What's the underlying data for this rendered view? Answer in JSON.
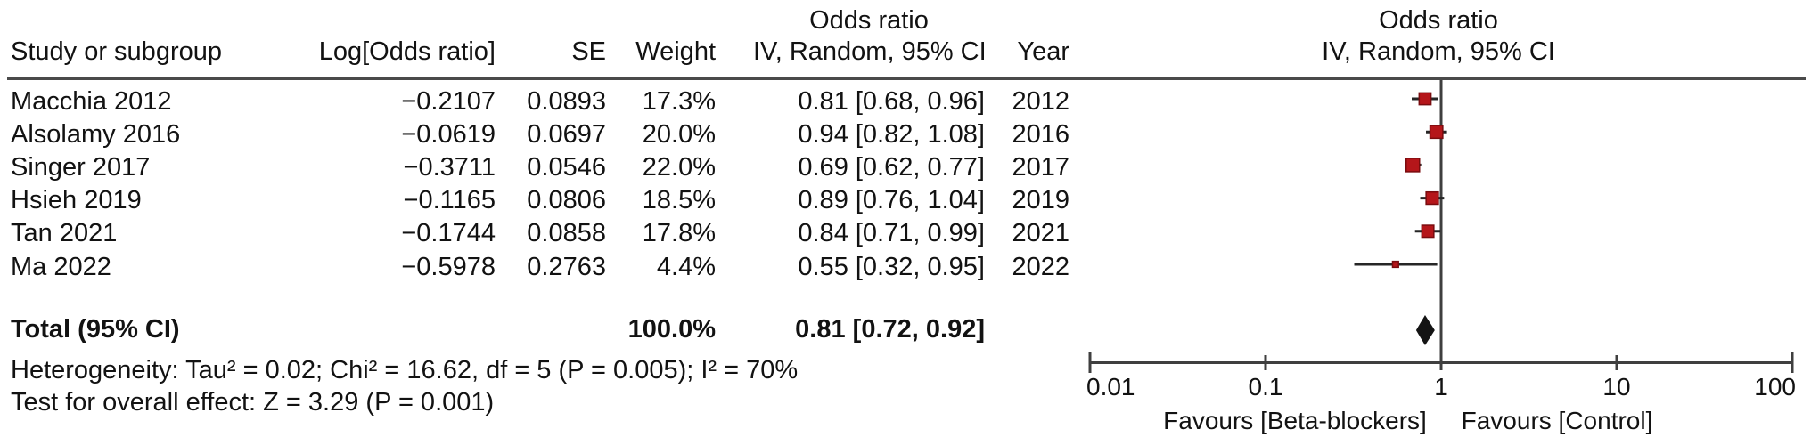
{
  "table": {
    "headers": {
      "study": "Study or subgroup",
      "log_or": "Log[Odds ratio]",
      "se": "SE",
      "weight": "Weight",
      "effect_line1": "Odds ratio",
      "effect_line2": "IV, Random, 95% CI",
      "year": "Year",
      "plot_line1": "Odds ratio",
      "plot_line2": "IV, Random, 95% CI"
    }
  },
  "chart_data": {
    "type": "forest",
    "effect_measure": "Odds ratio",
    "model": "IV, Random, 95% CI",
    "x_scale": "log",
    "x_range": [
      0.01,
      100
    ],
    "x_ticks": [
      0.01,
      0.1,
      1,
      10,
      100
    ],
    "x_tick_labels": [
      "0.01",
      "0.1",
      "1",
      "10",
      "100"
    ],
    "null_line": 1,
    "studies": [
      {
        "label": "Macchia 2012",
        "log_odds_ratio": "−0.2107",
        "se": "0.0893",
        "weight": "17.3%",
        "weight_pct": 17.3,
        "or": 0.81,
        "ci_low": 0.68,
        "ci_high": 0.96,
        "ci_text": "0.81 [0.68, 0.96]",
        "year": "2012"
      },
      {
        "label": "Alsolamy 2016",
        "log_odds_ratio": "−0.0619",
        "se": "0.0697",
        "weight": "20.0%",
        "weight_pct": 20.0,
        "or": 0.94,
        "ci_low": 0.82,
        "ci_high": 1.08,
        "ci_text": "0.94 [0.82, 1.08]",
        "year": "2016"
      },
      {
        "label": "Singer 2017",
        "log_odds_ratio": "−0.3711",
        "se": "0.0546",
        "weight": "22.0%",
        "weight_pct": 22.0,
        "or": 0.69,
        "ci_low": 0.62,
        "ci_high": 0.77,
        "ci_text": "0.69 [0.62, 0.77]",
        "year": "2017"
      },
      {
        "label": "Hsieh 2019",
        "log_odds_ratio": "−0.1165",
        "se": "0.0806",
        "weight": "18.5%",
        "weight_pct": 18.5,
        "or": 0.89,
        "ci_low": 0.76,
        "ci_high": 1.04,
        "ci_text": "0.89 [0.76, 1.04]",
        "year": "2019"
      },
      {
        "label": "Tan 2021",
        "log_odds_ratio": "−0.1744",
        "se": "0.0858",
        "weight": "17.8%",
        "weight_pct": 17.8,
        "or": 0.84,
        "ci_low": 0.71,
        "ci_high": 0.99,
        "ci_text": "0.84 [0.71, 0.99]",
        "year": "2021"
      },
      {
        "label": "Ma 2022",
        "log_odds_ratio": "−0.5978",
        "se": "0.2763",
        "weight": "4.4%",
        "weight_pct": 4.4,
        "or": 0.55,
        "ci_low": 0.32,
        "ci_high": 0.95,
        "ci_text": "0.55 [0.32, 0.95]",
        "year": "2022"
      }
    ],
    "total": {
      "label": "Total (95% CI)",
      "weight": "100.0%",
      "or": 0.81,
      "ci_low": 0.72,
      "ci_high": 0.92,
      "ci_text": "0.81 [0.72, 0.92]"
    },
    "footer": {
      "heterogeneity": "Heterogeneity: Tau² = 0.02; Chi² = 16.62, df = 5 (P = 0.005); I² = 70%",
      "overall_effect": "Test for overall effect: Z = 3.29 (P = 0.001)"
    },
    "favours_left": "Favours [Beta-blockers]",
    "favours_right": "Favours [Control]"
  },
  "colors": {
    "marker_red": "#b5161a",
    "marker_red_edge": "#7a0c0f",
    "diamond_black": "#141414",
    "axis_gray": "#3f3f3f",
    "rule_gray": "#4a4a4a",
    "ci_line": "#262626"
  }
}
